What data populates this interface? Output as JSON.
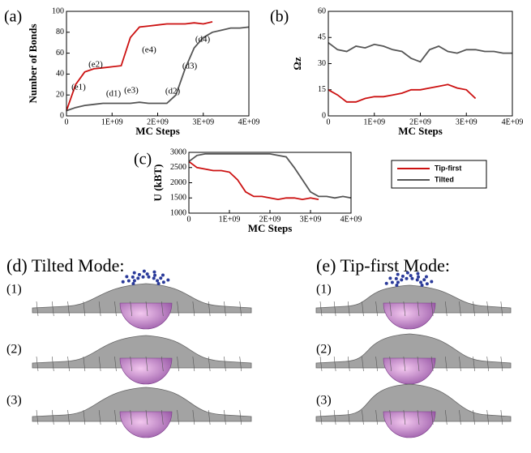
{
  "chart_data": [
    {
      "type": "line",
      "panel": "(a)",
      "x_label": "MC Steps",
      "y_label": "Number of Bonds",
      "x": [
        0,
        200000000,
        400000000,
        600000000,
        800000000,
        1000000000,
        1200000000,
        1400000000,
        1600000000,
        1800000000,
        2000000000,
        2200000000,
        2400000000,
        2600000000,
        2800000000,
        3000000000,
        3200000000,
        3400000000,
        3600000000,
        3800000000,
        4000000000
      ],
      "series": [
        {
          "name": "Tip-first",
          "color": "#cc1111",
          "values": [
            5,
            30,
            42,
            45,
            46,
            47,
            48,
            75,
            85,
            86,
            87,
            88,
            88,
            88,
            89,
            88,
            90,
            null,
            null,
            null,
            null
          ]
        },
        {
          "name": "Tilted",
          "color": "#555555",
          "values": [
            5,
            8,
            10,
            11,
            12,
            12,
            12,
            12,
            13,
            12,
            12,
            12,
            20,
            45,
            65,
            75,
            80,
            82,
            84,
            84,
            85
          ]
        }
      ],
      "annotations": [
        "(e1)",
        "(e2)",
        "(e3)",
        "(e4)",
        "(d1)",
        "(d2)",
        "(d3)",
        "(d4)"
      ],
      "xlim": [
        0,
        4000000000
      ],
      "xticks": [
        0,
        {
          "value": 1000000000,
          "label": "1E+09"
        },
        {
          "value": 2000000000,
          "label": "2E+09"
        },
        {
          "value": 3000000000,
          "label": "3E+09"
        },
        {
          "value": 4000000000,
          "label": "4E+09"
        }
      ],
      "ylim": [
        0,
        100
      ],
      "yticks": [
        0,
        20,
        40,
        60,
        80,
        100
      ]
    },
    {
      "type": "line",
      "panel": "(b)",
      "x_label": "MC Steps",
      "y_label": "Ωz",
      "x": [
        0,
        200000000,
        400000000,
        600000000,
        800000000,
        1000000000,
        1200000000,
        1400000000,
        1600000000,
        1800000000,
        2000000000,
        2200000000,
        2400000000,
        2600000000,
        2800000000,
        3000000000,
        3200000000,
        3400000000,
        3600000000,
        3800000000,
        4000000000
      ],
      "series": [
        {
          "name": "Tip-first",
          "color": "#cc1111",
          "values": [
            15,
            12,
            8,
            8,
            10,
            11,
            11,
            12,
            13,
            15,
            15,
            16,
            17,
            18,
            16,
            15,
            10,
            null,
            null,
            null,
            null
          ]
        },
        {
          "name": "Tilted",
          "color": "#555555",
          "values": [
            42,
            38,
            37,
            40,
            39,
            41,
            40,
            38,
            37,
            33,
            31,
            38,
            40,
            37,
            36,
            38,
            38,
            37,
            37,
            36,
            36
          ]
        }
      ],
      "xlim": [
        0,
        4000000000
      ],
      "xticks": [
        0,
        {
          "value": 1000000000,
          "label": "1E+09"
        },
        {
          "value": 2000000000,
          "label": "2E+09"
        },
        {
          "value": 3000000000,
          "label": "3E+09"
        },
        {
          "value": 4000000000,
          "label": "4E+09"
        }
      ],
      "ylim": [
        0,
        60
      ],
      "yticks": [
        0,
        15,
        30,
        45,
        60
      ]
    },
    {
      "type": "line",
      "panel": "(c)",
      "x_label": "MC Steps",
      "y_label": "U (kBT)",
      "x": [
        0,
        200000000,
        400000000,
        600000000,
        800000000,
        1000000000,
        1200000000,
        1400000000,
        1600000000,
        1800000000,
        2000000000,
        2200000000,
        2400000000,
        2600000000,
        2800000000,
        3000000000,
        3200000000,
        3400000000,
        3600000000,
        3800000000,
        4000000000
      ],
      "series": [
        {
          "name": "Tip-first",
          "color": "#cc1111",
          "values": [
            2700,
            2500,
            2450,
            2400,
            2400,
            2350,
            2100,
            1700,
            1550,
            1550,
            1500,
            1450,
            1500,
            1500,
            1450,
            1500,
            1450,
            null,
            null,
            null,
            null
          ]
        },
        {
          "name": "Tilted",
          "color": "#555555",
          "values": [
            2700,
            2900,
            2950,
            2950,
            2950,
            2950,
            2950,
            2950,
            2950,
            2950,
            2950,
            2900,
            2850,
            2500,
            2100,
            1700,
            1550,
            1550,
            1500,
            1550,
            1500
          ]
        }
      ],
      "xlim": [
        0,
        4000000000
      ],
      "xticks": [
        0,
        {
          "value": 1000000000,
          "label": "1E+09"
        },
        {
          "value": 2000000000,
          "label": "2E+09"
        },
        {
          "value": 3000000000,
          "label": "3E+09"
        },
        {
          "value": 4000000000,
          "label": "4E+09"
        }
      ],
      "ylim": [
        1000,
        3000
      ],
      "yticks": [
        1000,
        1500,
        2000,
        2500,
        3000
      ],
      "legend": "outside-right"
    }
  ],
  "images": {
    "d": {
      "title": "(d) Tilted Mode:",
      "rows": [
        "(1)",
        "(2)",
        "(3)"
      ]
    },
    "e": {
      "title": "(e) Tip-first Mode:",
      "rows": [
        "(1)",
        "(2)",
        "(3)"
      ]
    }
  }
}
